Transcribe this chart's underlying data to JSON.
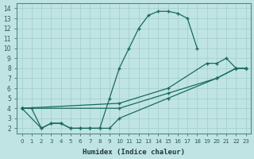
{
  "xlabel": "Humidex (Indice chaleur)",
  "background_color": "#c0e4e4",
  "grid_color": "#a0cccc",
  "line_color": "#1a6b5a",
  "xlim": [
    -0.5,
    23.5
  ],
  "ylim": [
    1.5,
    14.5
  ],
  "xticks": [
    0,
    1,
    2,
    3,
    4,
    5,
    6,
    7,
    8,
    9,
    10,
    11,
    12,
    13,
    14,
    15,
    16,
    17,
    18,
    19,
    20,
    21,
    22,
    23
  ],
  "yticks": [
    2,
    3,
    4,
    5,
    6,
    7,
    8,
    9,
    10,
    11,
    12,
    13,
    14
  ],
  "line1_x": [
    0,
    1,
    2,
    3,
    4,
    5,
    6,
    7,
    8,
    9,
    10,
    11,
    12,
    13,
    14,
    15,
    16,
    17,
    18
  ],
  "line1_y": [
    4,
    4,
    2,
    2.5,
    2.5,
    2,
    2,
    2,
    2,
    5,
    8,
    10,
    12,
    13.3,
    13.7,
    13.7,
    13.5,
    13,
    10
  ],
  "line2_x": [
    0,
    2,
    3,
    4,
    5,
    6,
    7,
    8,
    9,
    10,
    15,
    20,
    22,
    23
  ],
  "line2_y": [
    4,
    2,
    2.5,
    2.5,
    2,
    2,
    2,
    2,
    2,
    3,
    5,
    7,
    8,
    8
  ],
  "line3_x": [
    0,
    10,
    15,
    19,
    20,
    21,
    22,
    23
  ],
  "line3_y": [
    4,
    4.5,
    6,
    8.5,
    8.5,
    9,
    8,
    8
  ],
  "line4_x": [
    0,
    10,
    15,
    20,
    22,
    23
  ],
  "line4_y": [
    4,
    4,
    5.5,
    7,
    8,
    8
  ]
}
